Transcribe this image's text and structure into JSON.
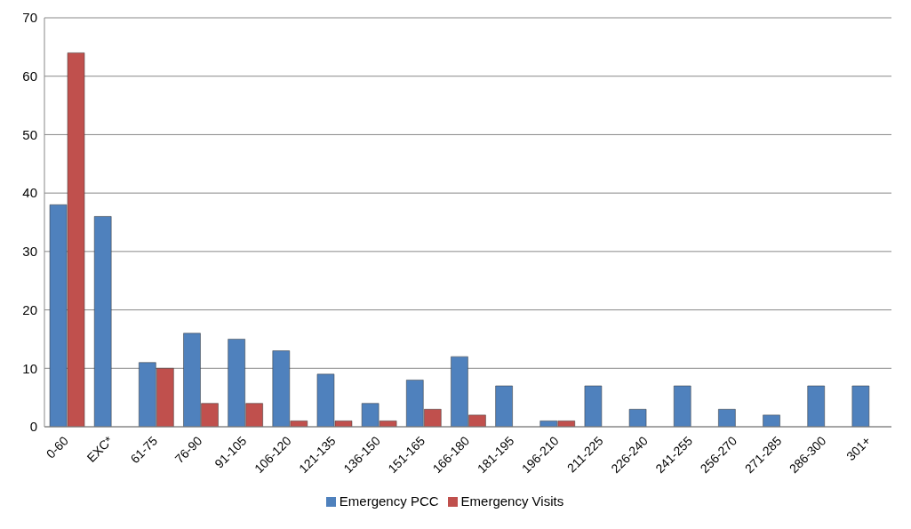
{
  "chart_data": {
    "type": "bar",
    "categories": [
      "0-60",
      "EXC*",
      "61-75",
      "76-90",
      "91-105",
      "106-120",
      "121-135",
      "136-150",
      "151-165",
      "166-180",
      "181-195",
      "196-210",
      "211-225",
      "226-240",
      "241-255",
      "256-270",
      "271-285",
      "286-300",
      "301+"
    ],
    "series": [
      {
        "name": "Emergency PCC",
        "color": "#4f81bd",
        "values": [
          38,
          36,
          11,
          16,
          15,
          13,
          9,
          4,
          8,
          12,
          7,
          1,
          7,
          3,
          7,
          3,
          2,
          7,
          7
        ]
      },
      {
        "name": "Emergency Visits",
        "color": "#c0504d",
        "values": [
          64,
          null,
          10,
          4,
          4,
          1,
          1,
          1,
          3,
          2,
          null,
          1,
          null,
          null,
          null,
          null,
          null,
          null,
          null
        ]
      }
    ],
    "ylim": [
      0,
      70
    ],
    "yticks": [
      0,
      10,
      20,
      30,
      40,
      50,
      60,
      70
    ],
    "grid": "y",
    "legend": "bottom"
  }
}
